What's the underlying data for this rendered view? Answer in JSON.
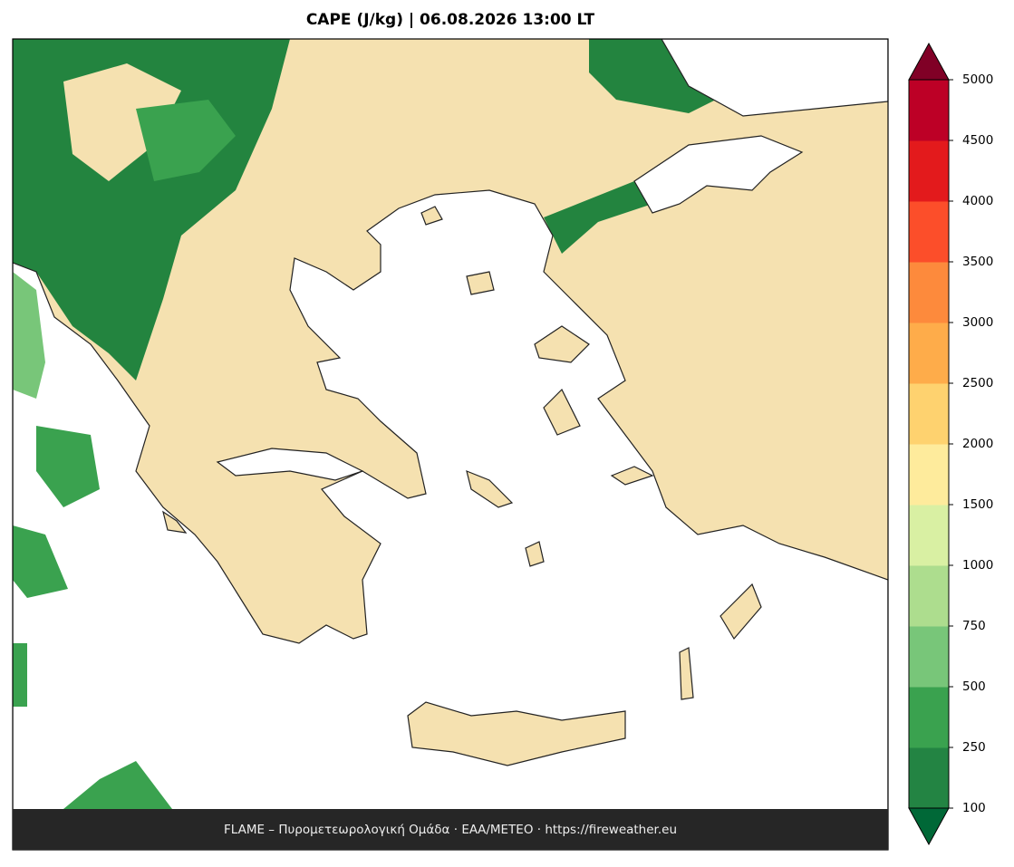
{
  "title": "CAPE (J/kg)  |  06.08.2026 13:00 LT",
  "footer": "FLAME – Πυρομετεωρολογική Ομάδα · ΕΑΑ/METEO · https://fireweather.eu",
  "colorbar": {
    "levels": [
      100,
      250,
      500,
      750,
      1000,
      1500,
      2000,
      2500,
      3000,
      3500,
      4000,
      4500,
      5000
    ],
    "colors": [
      "#238443",
      "#3aa24f",
      "#78c679",
      "#addd8e",
      "#d9f0a3",
      "#feeb9c",
      "#fed26f",
      "#feac4a",
      "#fd8a3c",
      "#fc4e2a",
      "#e31a1c",
      "#bd0026"
    ],
    "under_color": "#006837",
    "over_color": "#800026"
  }
}
